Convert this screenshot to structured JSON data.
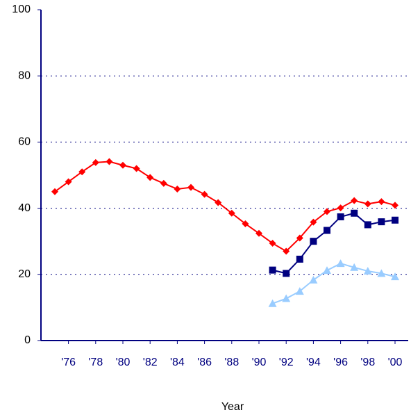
{
  "chart_data": {
    "type": "line",
    "x_label": "Year",
    "categories": [
      null,
      "'76",
      null,
      "'78",
      null,
      "'80",
      null,
      "'82",
      null,
      "'84",
      null,
      "'86",
      null,
      "'88",
      null,
      "'90",
      null,
      "'92",
      null,
      "'94",
      null,
      "'96",
      null,
      "'98",
      null,
      "'00"
    ],
    "series": [
      {
        "color": "#ff0000",
        "marker": "diamond",
        "values": [
          45,
          48,
          51,
          53.8,
          54.1,
          53,
          52,
          49.3,
          47.5,
          45.8,
          46.3,
          44.2,
          41.7,
          38.5,
          35.3,
          32.4,
          29.4,
          27,
          31,
          35.8,
          39,
          40.1,
          42.3,
          41.3,
          42,
          40.9
        ]
      },
      {
        "color": "#000080",
        "marker": "square",
        "values": [
          null,
          null,
          null,
          null,
          null,
          null,
          null,
          null,
          null,
          null,
          null,
          null,
          null,
          null,
          null,
          null,
          21.3,
          20.3,
          24.6,
          30,
          33.3,
          37.4,
          38.5,
          35,
          35.9,
          36.4
        ]
      },
      {
        "color": "#99ccff",
        "marker": "triangle",
        "values": [
          null,
          null,
          null,
          null,
          null,
          null,
          null,
          null,
          null,
          null,
          null,
          null,
          null,
          null,
          null,
          null,
          11.2,
          12.7,
          14.9,
          18.3,
          21.2,
          23.3,
          22.1,
          21,
          20.3,
          19.3
        ]
      }
    ],
    "ylim": [
      0,
      100
    ],
    "yticks": [
      0,
      20,
      40,
      60,
      80,
      100
    ],
    "grid": true
  }
}
